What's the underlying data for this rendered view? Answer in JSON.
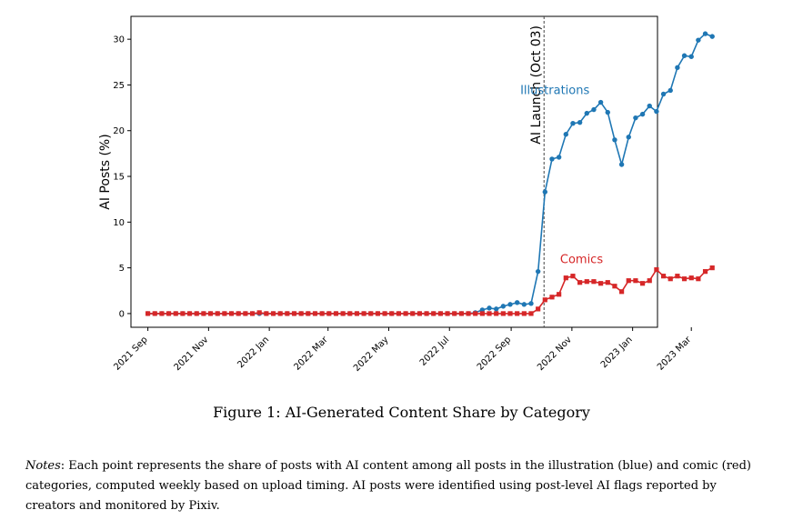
{
  "chart_data": {
    "type": "line",
    "ylabel": "AI Posts (%)",
    "xlabel": "",
    "ylim": [
      -1.5,
      32.5
    ],
    "yticks": [
      0,
      5,
      10,
      15,
      20,
      25,
      30
    ],
    "xlim": [
      -17,
      512
    ],
    "xtick_labels": [
      "2021 Sep",
      "2021 Nov",
      "2022 Jan",
      "2022 Mar",
      "2022 May",
      "2022 Jul",
      "2022 Sep",
      "2022 Nov",
      "2023 Jan",
      "2023 Mar"
    ],
    "xtick_days": [
      0,
      61,
      122,
      181,
      242,
      303,
      365,
      426,
      487,
      546
    ],
    "launch_day": 398,
    "launch_label": "AI Launch (Oct 03)",
    "series": [
      {
        "name": "Illustrations",
        "color": "#1f77b4",
        "marker": "circle",
        "label_at": [
          365,
          24
        ],
        "start_day": 0,
        "step_days": 7,
        "values": [
          0,
          0,
          0,
          0,
          0,
          0,
          0,
          0,
          0,
          0,
          0,
          0,
          0,
          0,
          0,
          0,
          0,
          0,
          0,
          0,
          0,
          0,
          0,
          0,
          0,
          0,
          0,
          0,
          0,
          0,
          0,
          0,
          0,
          0,
          0,
          0,
          0,
          0,
          0,
          0,
          0,
          0,
          0,
          0,
          0,
          0,
          0,
          0.1,
          0.4,
          0.6,
          0.5,
          0.8,
          1.0,
          1.2,
          1.0,
          1.1,
          4.6,
          13.3,
          16.9,
          17.1,
          19.6,
          20.8,
          20.9,
          21.9,
          22.3,
          23.1,
          22.0,
          19.0,
          16.3,
          19.3,
          21.4,
          21.8,
          22.7,
          22.1,
          24.0,
          24.4,
          26.9,
          28.2,
          28.1,
          29.9,
          30.6,
          30.3
        ]
      },
      {
        "name": "Comics",
        "color": "#d62728",
        "marker": "square",
        "label_at": [
          405,
          5.5
        ],
        "start_day": 0,
        "step_days": 7,
        "values": [
          0,
          0,
          0,
          0,
          0,
          0,
          0,
          0,
          0,
          0,
          0,
          0,
          0,
          0,
          0,
          0,
          0.1,
          0,
          0,
          0,
          0,
          0,
          0,
          0,
          0,
          0,
          0,
          0,
          0,
          0,
          0,
          0,
          0,
          0,
          0,
          0,
          0,
          0,
          0,
          0,
          0,
          0,
          0,
          0,
          0,
          0,
          0,
          0,
          0,
          0,
          0,
          0,
          0,
          0,
          0,
          0,
          0.5,
          1.5,
          1.8,
          2.1,
          3.9,
          4.1,
          3.4,
          3.5,
          3.5,
          3.3,
          3.4,
          3.0,
          2.4,
          3.6,
          3.6,
          3.3,
          3.6,
          4.8,
          4.1,
          3.8,
          4.1,
          3.8,
          3.9,
          3.8,
          4.6,
          5.0
        ]
      }
    ]
  },
  "caption": "Figure 1: AI-Generated Content Share by Category",
  "notes": {
    "label": "Notes",
    "text": ": Each point represents the share of posts with AI content among all posts in the illustration (blue) and comic (red) categories, computed weekly based on upload timing. AI posts were identified using post-level AI flags reported by creators and monitored by Pixiv."
  }
}
